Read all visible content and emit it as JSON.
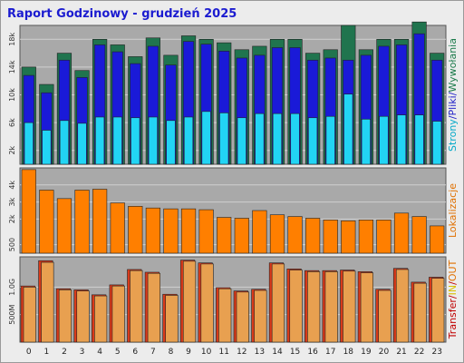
{
  "title": "Raport Godzinowy -   grudzień 2025",
  "colors": {
    "frame": "#ececec",
    "plot_bg": "#a9a9a9",
    "grid": "#d0d0d0",
    "visits": "#20744e",
    "pages": "#1a1ad8",
    "files": "#22d4f4",
    "locations": "#ff7f00",
    "transfer_in": "#e8a050",
    "transfer_out": "#d93a1a",
    "label_red": "#c00000",
    "label_yellow": "#d8c000",
    "label_orange": "#e07000",
    "label_cyan": "#00a8c8",
    "label_blue": "#2020c8",
    "label_green": "#1a7a4a"
  },
  "chart_data": [
    {
      "type": "bar",
      "panel": "top",
      "categories": [
        "0",
        "1",
        "2",
        "3",
        "4",
        "5",
        "6",
        "7",
        "8",
        "9",
        "10",
        "11",
        "12",
        "13",
        "14",
        "15",
        "16",
        "17",
        "18",
        "19",
        "20",
        "21",
        "22",
        "23"
      ],
      "y_ticks": [
        "2k",
        "6k",
        "10k",
        "14k",
        "18k"
      ],
      "y_tick_values": [
        2000,
        6000,
        10000,
        14000,
        18000
      ],
      "ylim": [
        0,
        20000
      ],
      "side_label": {
        "parts": [
          "Strony",
          "/",
          "Pliki",
          "/",
          "Wywołania"
        ]
      },
      "series": [
        {
          "name": "Wywołania",
          "color_key": "visits",
          "values": [
            14000,
            11500,
            16000,
            13500,
            18000,
            17200,
            15500,
            18200,
            15700,
            18500,
            18000,
            17500,
            16500,
            17000,
            18000,
            18000,
            16000,
            16500,
            20000,
            16500,
            18000,
            18000,
            20500,
            16000
          ]
        },
        {
          "name": "Pliki",
          "color_key": "pages",
          "values": [
            12800,
            10300,
            15000,
            12500,
            17200,
            16200,
            14500,
            17000,
            14300,
            17700,
            17300,
            16300,
            15300,
            15700,
            16800,
            16800,
            15000,
            15300,
            15000,
            15700,
            17000,
            17200,
            18800,
            15000
          ]
        },
        {
          "name": "Strony",
          "color_key": "files",
          "values": [
            6000,
            4900,
            6300,
            5900,
            6800,
            6800,
            6700,
            6800,
            6300,
            6800,
            7600,
            7400,
            6700,
            7300,
            7300,
            7300,
            6700,
            6900,
            10100,
            6500,
            6900,
            7100,
            7100,
            6200
          ]
        }
      ]
    },
    {
      "type": "bar",
      "panel": "middle",
      "categories": [
        "0",
        "1",
        "2",
        "3",
        "4",
        "5",
        "6",
        "7",
        "8",
        "9",
        "10",
        "11",
        "12",
        "13",
        "14",
        "15",
        "16",
        "17",
        "18",
        "19",
        "20",
        "21",
        "22",
        "23"
      ],
      "y_ticks": [
        "500",
        "2k",
        "3k",
        "4k"
      ],
      "y_tick_values": [
        500,
        2000,
        3000,
        4000
      ],
      "ylim": [
        0,
        5000
      ],
      "side_label": {
        "parts": [
          "Lokalizacje"
        ]
      },
      "series": [
        {
          "name": "Lokalizacje",
          "color_key": "locations",
          "values": [
            4900,
            3700,
            3200,
            3700,
            3750,
            2950,
            2750,
            2650,
            2600,
            2600,
            2550,
            2100,
            2050,
            2500,
            2250,
            2150,
            2050,
            1950,
            1900,
            1950,
            1950,
            2350,
            2150,
            1600
          ]
        }
      ]
    },
    {
      "type": "bar",
      "panel": "bottom",
      "categories": [
        "0",
        "1",
        "2",
        "3",
        "4",
        "5",
        "6",
        "7",
        "8",
        "9",
        "10",
        "11",
        "12",
        "13",
        "14",
        "15",
        "16",
        "17",
        "18",
        "19",
        "20",
        "21",
        "22",
        "23"
      ],
      "y_ticks": [
        "500M",
        "1.0G"
      ],
      "y_tick_values": [
        0.5,
        1.0
      ],
      "ylim": [
        0,
        1.55
      ],
      "side_label": {
        "parts": [
          "Transfer",
          "/",
          "IN",
          "/",
          "OUT"
        ]
      },
      "series": [
        {
          "name": "Transfer",
          "color_key": "transfer_out",
          "values": [
            1.02,
            1.48,
            0.97,
            0.95,
            0.86,
            1.04,
            1.32,
            1.27,
            0.87,
            1.49,
            1.44,
            0.99,
            0.93,
            0.96,
            1.44,
            1.33,
            1.3,
            1.3,
            1.31,
            1.28,
            0.96,
            1.34,
            1.09,
            1.18
          ]
        },
        {
          "name": "IN",
          "color_key": "transfer_in",
          "values": [
            1.0,
            1.45,
            0.95,
            0.93,
            0.84,
            1.02,
            1.3,
            1.25,
            0.85,
            1.47,
            1.42,
            0.97,
            0.91,
            0.94,
            1.42,
            1.31,
            1.28,
            1.28,
            1.29,
            1.26,
            0.94,
            1.32,
            1.07,
            1.16
          ]
        }
      ]
    }
  ]
}
